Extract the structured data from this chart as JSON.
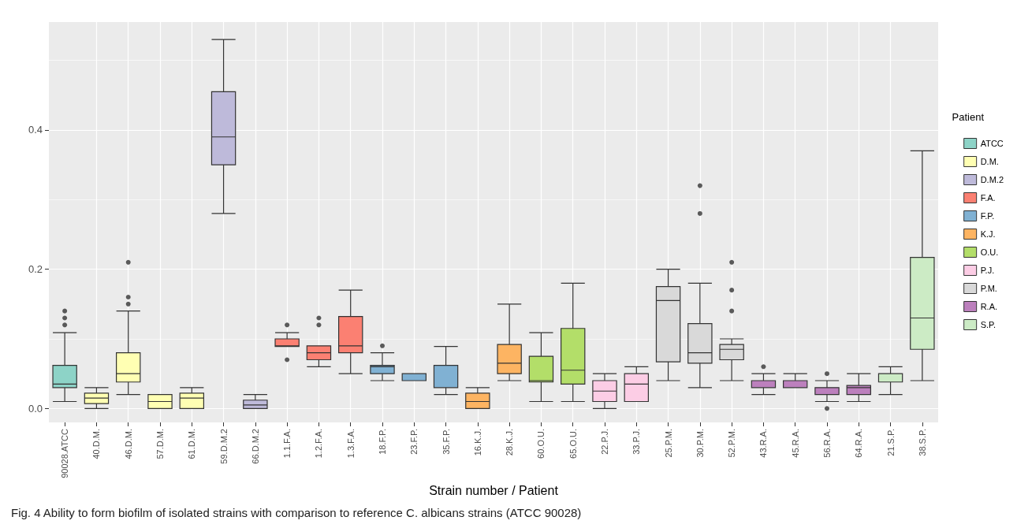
{
  "chart_data": {
    "type": "box",
    "xlabel": "Strain number / Patient",
    "legend_title": "Patient",
    "legend": "right",
    "grid": true,
    "categories": [
      "90028.ATCC",
      "40.D.M.",
      "46.D.M.",
      "57.D.M.",
      "61.D.M.",
      "59.D.M.2",
      "66.D.M.2",
      "1.1.F.A.",
      "1.2.F.A.",
      "1.3.F.A.",
      "18.F.P.",
      "23.F.P.",
      "35.F.P.",
      "16.K.J.",
      "28.K.J.",
      "60.O.U.",
      "65.O.U.",
      "22.P.J.",
      "33.P.J.",
      "25.P.M.",
      "30.P.M.",
      "52.P.M.",
      "43.R.A.",
      "45.R.A.",
      "56.R.A.",
      "64.R.A.",
      "21.S.P.",
      "38.S.P."
    ],
    "ylim": [
      -0.02,
      0.555
    ],
    "yticks": [
      {
        "value": 0,
        "label": "0.0"
      },
      {
        "value": 0.2,
        "label": "0.2"
      },
      {
        "value": 0.4,
        "label": "0.4"
      }
    ],
    "series": [
      {
        "name": "ATCC",
        "color": "#8dd3c7",
        "x": [
          "90028.ATCC"
        ],
        "boxes": [
          {
            "low": 0.01,
            "q1": 0.03,
            "median": 0.035,
            "q3": 0.062,
            "high": 0.109,
            "outliers": [
              0.12,
              0.13,
              0.14
            ]
          }
        ]
      },
      {
        "name": "D.M.",
        "color": "#ffffb3",
        "x": [
          "40.D.M.",
          "46.D.M.",
          "57.D.M.",
          "61.D.M."
        ],
        "boxes": [
          {
            "low": 0,
            "q1": 0.007,
            "median": 0.015,
            "q3": 0.022,
            "high": 0.03
          },
          {
            "low": 0.02,
            "q1": 0.038,
            "median": 0.05,
            "q3": 0.08,
            "high": 0.14,
            "outliers": [
              0.15,
              0.16,
              0.21
            ]
          },
          {
            "low": 0,
            "q1": 0,
            "median": 0.01,
            "q3": 0.02,
            "high": 0.02
          },
          {
            "low": 0,
            "q1": 0,
            "median": 0.015,
            "q3": 0.022,
            "high": 0.03
          }
        ]
      },
      {
        "name": "D.M.2",
        "color": "#bebada",
        "x": [
          "59.D.M.2",
          "66.D.M.2"
        ],
        "boxes": [
          {
            "low": 0.28,
            "q1": 0.35,
            "median": 0.39,
            "q3": 0.455,
            "high": 0.53
          },
          {
            "low": 0,
            "q1": 0,
            "median": 0.005,
            "q3": 0.012,
            "high": 0.02
          }
        ]
      },
      {
        "name": "F.A.",
        "color": "#fb8072",
        "x": [
          "1.1.F.A.",
          "1.2.F.A.",
          "1.3.F.A."
        ],
        "boxes": [
          {
            "low": 0.089,
            "q1": 0.089,
            "median": 0.09,
            "q3": 0.1,
            "high": 0.109,
            "outliers": [
              0.07,
              0.12
            ]
          },
          {
            "low": 0.06,
            "q1": 0.07,
            "median": 0.08,
            "q3": 0.09,
            "high": 0.09,
            "outliers": [
              0.12,
              0.13
            ]
          },
          {
            "low": 0.05,
            "q1": 0.08,
            "median": 0.09,
            "q3": 0.132,
            "high": 0.17
          }
        ]
      },
      {
        "name": "F.P.",
        "color": "#80b1d3",
        "x": [
          "18.F.P.",
          "23.F.P.",
          "35.F.P."
        ],
        "boxes": [
          {
            "low": 0.04,
            "q1": 0.05,
            "median": 0.06,
            "q3": 0.062,
            "high": 0.08,
            "outliers": [
              0.09
            ]
          },
          {
            "low": 0.04,
            "q1": 0.04,
            "median": 0.05,
            "q3": 0.05,
            "high": 0.05
          },
          {
            "low": 0.02,
            "q1": 0.03,
            "median": 0.03,
            "q3": 0.062,
            "high": 0.089
          }
        ]
      },
      {
        "name": "K.J.",
        "color": "#fdb462",
        "x": [
          "16.K.J.",
          "28.K.J."
        ],
        "boxes": [
          {
            "low": 0,
            "q1": 0,
            "median": 0.01,
            "q3": 0.022,
            "high": 0.03
          },
          {
            "low": 0.04,
            "q1": 0.05,
            "median": 0.065,
            "q3": 0.092,
            "high": 0.15
          }
        ]
      },
      {
        "name": "O.U.",
        "color": "#b3de69",
        "x": [
          "60.O.U.",
          "65.O.U."
        ],
        "boxes": [
          {
            "low": 0.01,
            "q1": 0.038,
            "median": 0.04,
            "q3": 0.075,
            "high": 0.109
          },
          {
            "low": 0.01,
            "q1": 0.035,
            "median": 0.055,
            "q3": 0.115,
            "high": 0.18
          }
        ]
      },
      {
        "name": "P.J.",
        "color": "#fccde5",
        "x": [
          "22.P.J.",
          "33.P.J."
        ],
        "boxes": [
          {
            "low": 0,
            "q1": 0.01,
            "median": 0.025,
            "q3": 0.04,
            "high": 0.05
          },
          {
            "low": 0.01,
            "q1": 0.01,
            "median": 0.035,
            "q3": 0.05,
            "high": 0.06
          }
        ]
      },
      {
        "name": "P.M.",
        "color": "#d9d9d9",
        "x": [
          "25.P.M.",
          "30.P.M.",
          "52.P.M."
        ],
        "boxes": [
          {
            "low": 0.04,
            "q1": 0.067,
            "median": 0.155,
            "q3": 0.175,
            "high": 0.2
          },
          {
            "low": 0.03,
            "q1": 0.065,
            "median": 0.08,
            "q3": 0.122,
            "high": 0.18,
            "outliers": [
              0.28,
              0.32
            ]
          },
          {
            "low": 0.04,
            "q1": 0.07,
            "median": 0.085,
            "q3": 0.092,
            "high": 0.1,
            "outliers": [
              0.14,
              0.17,
              0.21
            ]
          }
        ]
      },
      {
        "name": "R.A.",
        "color": "#bc80bd",
        "x": [
          "43.R.A.",
          "45.R.A.",
          "56.R.A.",
          "64.R.A."
        ],
        "boxes": [
          {
            "low": 0.02,
            "q1": 0.03,
            "median": 0.03,
            "q3": 0.04,
            "high": 0.05,
            "outliers": [
              0.06
            ]
          },
          {
            "low": 0.03,
            "q1": 0.03,
            "median": 0.03,
            "q3": 0.04,
            "high": 0.05
          },
          {
            "low": 0.01,
            "q1": 0.02,
            "median": 0.03,
            "q3": 0.03,
            "high": 0.04,
            "outliers": [
              0,
              0.05
            ]
          },
          {
            "low": 0.01,
            "q1": 0.02,
            "median": 0.03,
            "q3": 0.033,
            "high": 0.05
          }
        ]
      },
      {
        "name": "S.P.",
        "color": "#ccebc5",
        "x": [
          "21.S.P.",
          "38.S.P."
        ],
        "boxes": [
          {
            "low": 0.02,
            "q1": 0.038,
            "median": 0.05,
            "q3": 0.05,
            "high": 0.06
          },
          {
            "low": 0.04,
            "q1": 0.085,
            "median": 0.13,
            "q3": 0.217,
            "high": 0.37
          }
        ]
      }
    ],
    "annotations": [
      "Fig. 4 Ability to form biofilm of isolated strains with comparison to reference C. albicans strains (ATCC 90028)"
    ]
  }
}
